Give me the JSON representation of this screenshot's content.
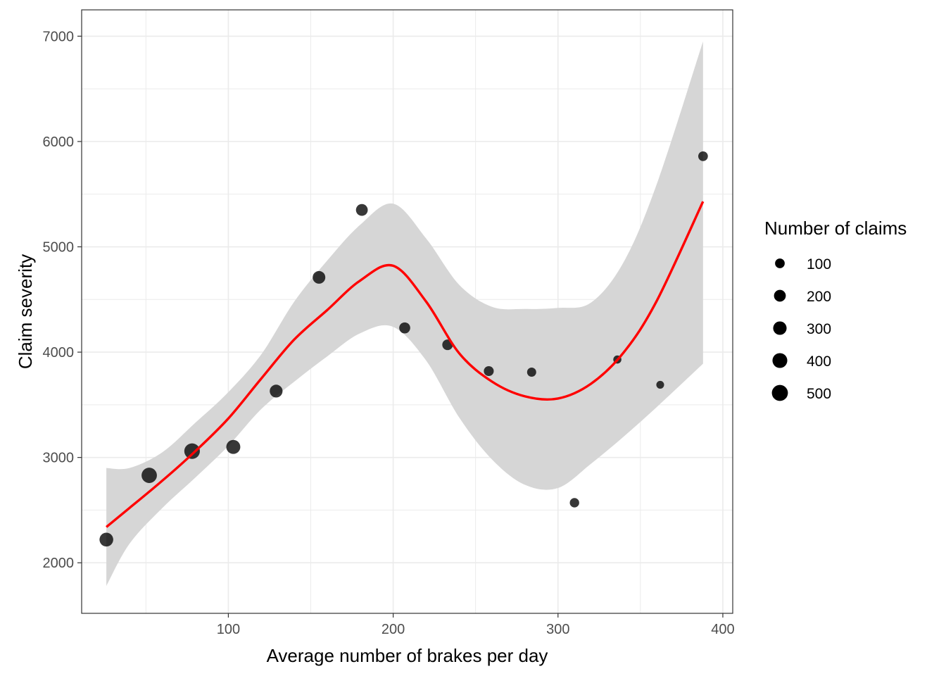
{
  "chart_data": {
    "type": "scatter",
    "xlabel": "Average number of brakes per day",
    "ylabel": "Claim severity",
    "xlim": [
      11,
      406
    ],
    "ylim": [
      1520,
      7250
    ],
    "x_ticks": [
      100,
      200,
      300,
      400
    ],
    "y_ticks": [
      2000,
      3000,
      4000,
      5000,
      6000,
      7000
    ],
    "grid": true,
    "colors": {
      "points": "#000000",
      "smooth_line": "#ff0000",
      "confidence_band": "#d6d6d6",
      "grid": "#ebebeb",
      "panel_border": "#333333"
    },
    "points": [
      {
        "x": 26,
        "y": 2220,
        "claims": 320
      },
      {
        "x": 52,
        "y": 2830,
        "claims": 440
      },
      {
        "x": 78,
        "y": 3060,
        "claims": 460
      },
      {
        "x": 103,
        "y": 3100,
        "claims": 340
      },
      {
        "x": 129,
        "y": 3630,
        "claims": 260
      },
      {
        "x": 155,
        "y": 4710,
        "claims": 250
      },
      {
        "x": 181,
        "y": 5350,
        "claims": 200
      },
      {
        "x": 207,
        "y": 4230,
        "claims": 160
      },
      {
        "x": 233,
        "y": 4070,
        "claims": 140
      },
      {
        "x": 258,
        "y": 3820,
        "claims": 110
      },
      {
        "x": 284,
        "y": 3810,
        "claims": 80
      },
      {
        "x": 310,
        "y": 2570,
        "claims": 90
      },
      {
        "x": 336,
        "y": 3930,
        "claims": 50
      },
      {
        "x": 362,
        "y": 3690,
        "claims": 40
      },
      {
        "x": 388,
        "y": 5860,
        "claims": 100
      }
    ],
    "smooth": {
      "x": [
        26,
        40,
        60,
        80,
        100,
        120,
        140,
        160,
        180,
        200,
        220,
        240,
        260,
        280,
        300,
        320,
        340,
        360,
        388
      ],
      "y": [
        2340,
        2520,
        2780,
        3060,
        3370,
        3750,
        4120,
        4400,
        4680,
        4820,
        4480,
        3990,
        3720,
        3580,
        3560,
        3700,
        4000,
        4490,
        5430
      ],
      "lower": [
        1780,
        2180,
        2520,
        2810,
        3110,
        3460,
        3720,
        3960,
        4180,
        4240,
        3920,
        3380,
        2980,
        2740,
        2710,
        2940,
        3200,
        3480,
        3890
      ],
      "upper": [
        2900,
        2900,
        3050,
        3330,
        3620,
        3980,
        4480,
        4870,
        5210,
        5410,
        5080,
        4640,
        4430,
        4410,
        4420,
        4470,
        4860,
        5600,
        6950
      ]
    },
    "legend": {
      "title": "Number of claims",
      "placement": "right",
      "items": [
        {
          "label": "100",
          "claims": 100
        },
        {
          "label": "200",
          "claims": 200
        },
        {
          "label": "300",
          "claims": 300
        },
        {
          "label": "400",
          "claims": 400
        },
        {
          "label": "500",
          "claims": 500
        }
      ]
    }
  }
}
